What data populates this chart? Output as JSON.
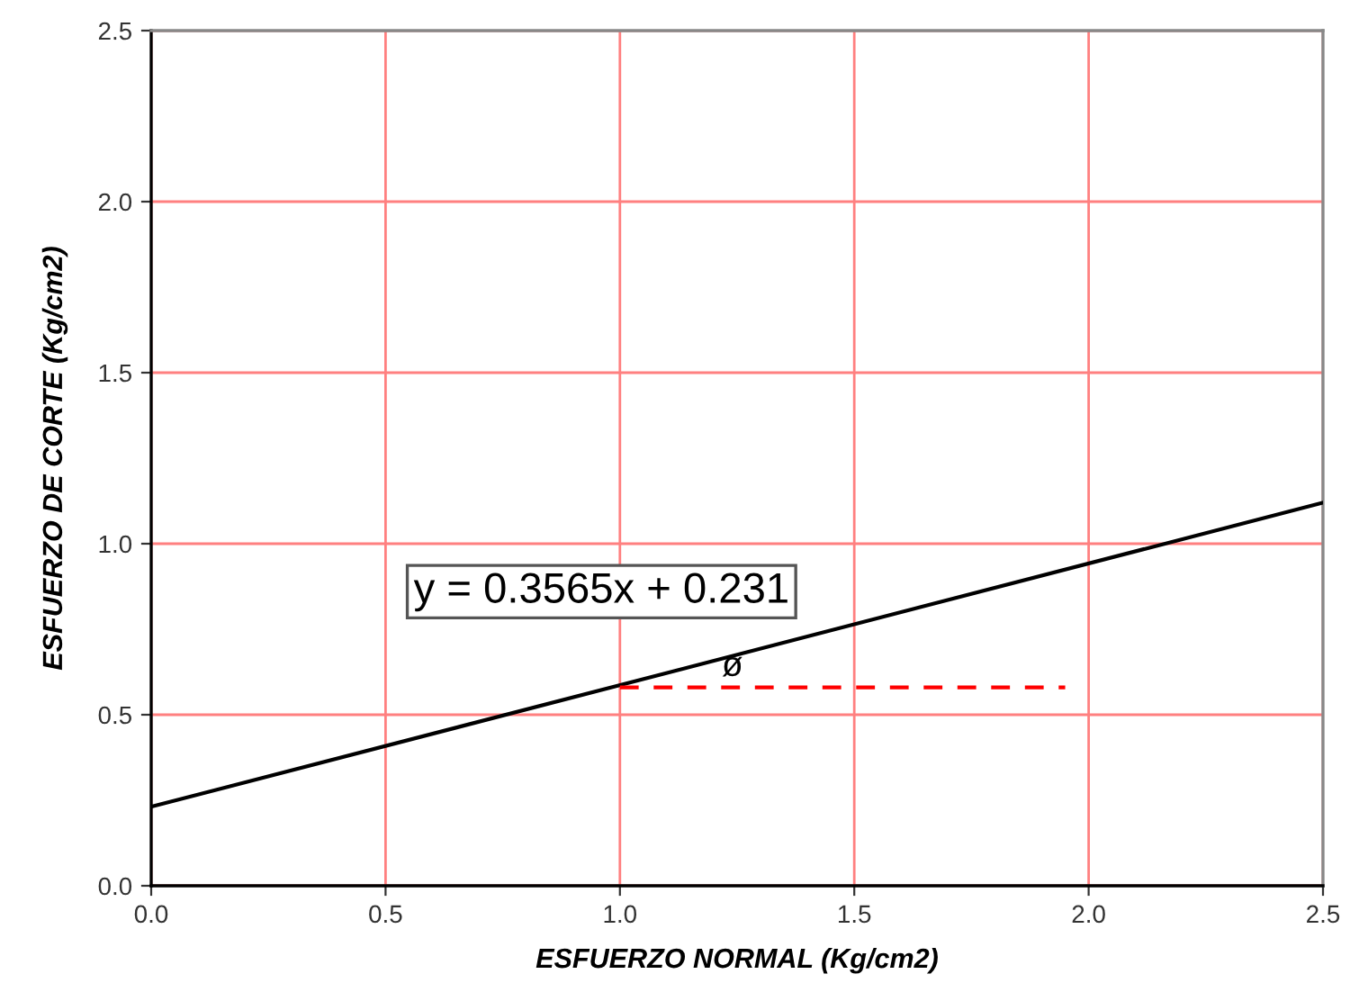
{
  "chart_data": {
    "type": "line",
    "xlabel": "ESFUERZO NORMAL (Kg/cm2)",
    "ylabel": "ESFUERZO DE CORTE (Kg/cm2)",
    "series": [
      {
        "color": "#000000",
        "line_style": "solid",
        "x": [
          0,
          2.5
        ],
        "values": [
          0.231,
          1.12
        ]
      },
      {
        "color": "#ff0000",
        "line_style": "dashed",
        "x": [
          1.0,
          1.95
        ],
        "values": [
          0.58,
          0.58
        ]
      }
    ],
    "xlim": [
      0,
      2.5
    ],
    "ylim": [
      0,
      2.5
    ],
    "xticks": [
      {
        "value": 0,
        "label": "0.0"
      },
      0.5,
      {
        "value": 1,
        "label": "1.0"
      },
      1.5,
      {
        "value": 2,
        "label": "2.0"
      },
      2.5
    ],
    "yticks": [
      {
        "value": 0,
        "label": "0.0"
      },
      0.5,
      {
        "value": 1,
        "label": "1.0"
      },
      1.5,
      {
        "value": 2,
        "label": "2.0"
      },
      2.5
    ],
    "grid": true,
    "marker": "none",
    "annotations": [
      "y = 0.3565x + 0.231",
      {
        "text": "ø",
        "x": 1.24,
        "y": 0.64
      }
    ]
  }
}
